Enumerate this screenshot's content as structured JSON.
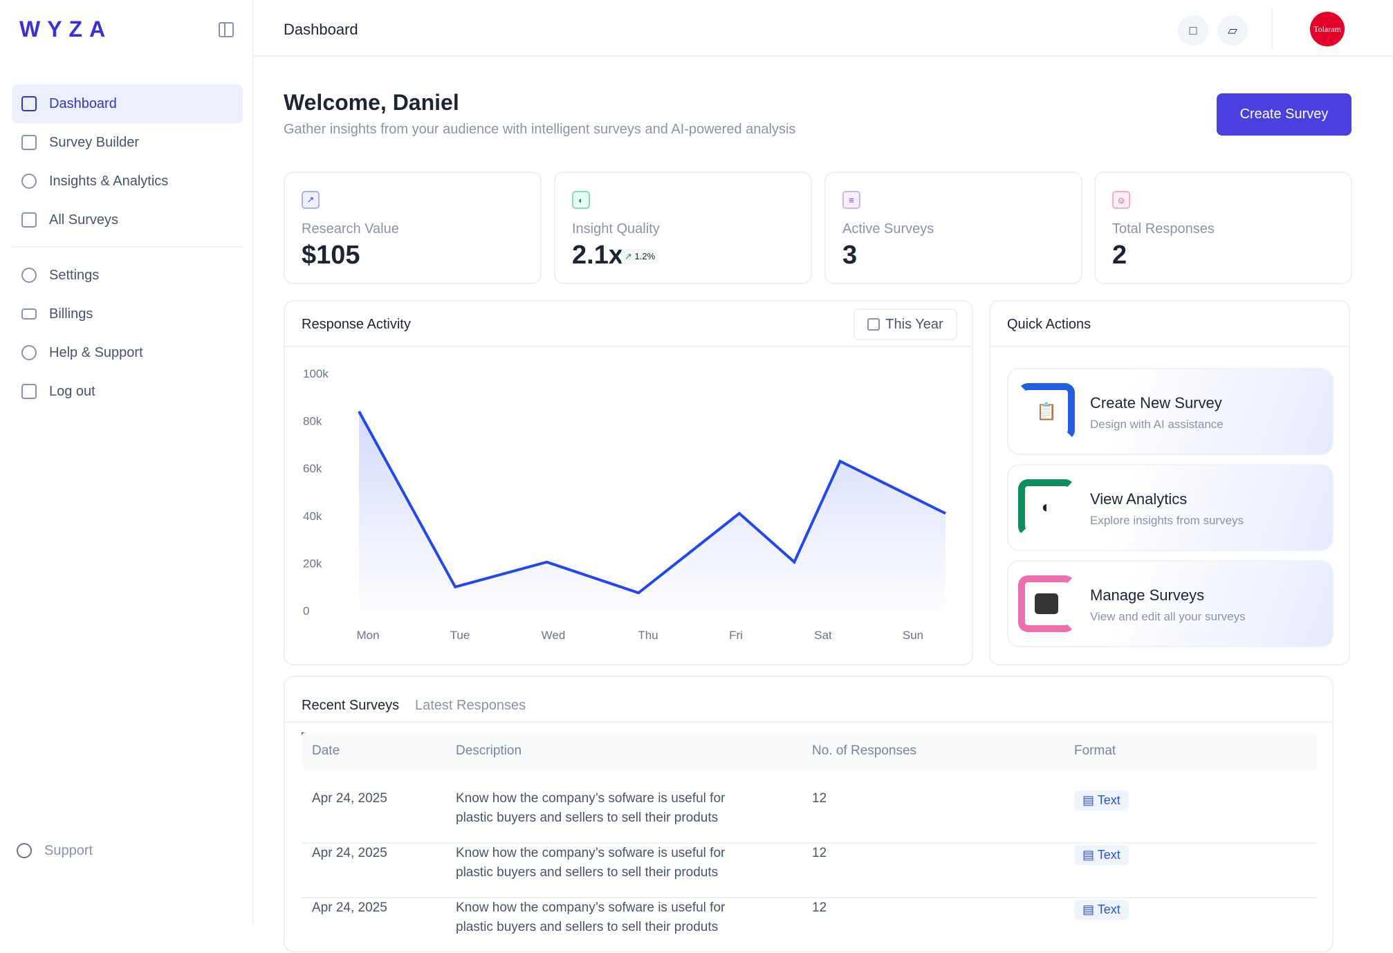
{
  "brand": "WYZA",
  "sidebar": {
    "items": [
      {
        "label": "Dashboard",
        "icon": "dashboard-icon"
      },
      {
        "label": "Survey Builder",
        "icon": "document-icon"
      },
      {
        "label": "Insights & Analytics",
        "icon": "brain-icon"
      },
      {
        "label": "All Surveys",
        "icon": "chart-file-icon"
      }
    ],
    "secondary": [
      {
        "label": "Settings",
        "icon": "gear-icon"
      },
      {
        "label": "Billings",
        "icon": "credit-card-icon"
      },
      {
        "label": "Help & Support",
        "icon": "help-icon"
      },
      {
        "label": "Log out",
        "icon": "logout-icon"
      }
    ],
    "support": "Support"
  },
  "header": {
    "title": "Dashboard",
    "avatar": "Tolaram"
  },
  "welcome": {
    "title": "Welcome, Daniel",
    "subtitle": "Gather insights from your audience with intelligent surveys and AI-powered analysis",
    "cta": "Create Survey"
  },
  "stats": [
    {
      "label": "Research Value",
      "value": "$105",
      "color": "#4f46e5"
    },
    {
      "label": "Insight Quality",
      "value": "2.1x",
      "delta": "1.2%",
      "color": "#059669"
    },
    {
      "label": "Active Surveys",
      "value": "3",
      "color": "#9333ea"
    },
    {
      "label": "Total Responses",
      "value": "2",
      "color": "#db2777"
    }
  ],
  "activity": {
    "title": "Response Activity",
    "range": "This Year"
  },
  "chart_data": {
    "type": "area",
    "title": "Response Activity",
    "categories": [
      "Mon",
      "Tue",
      "Wed",
      "Thu",
      "Fri",
      "Sat",
      "Sun"
    ],
    "x": [
      0,
      1.05,
      2.05,
      3.05,
      4.15,
      4.75,
      5.25,
      6.4
    ],
    "values": [
      84000,
      10000,
      20500,
      7500,
      41000,
      20500,
      63000,
      41000
    ],
    "yticks": [
      "0",
      "20k",
      "40k",
      "60k",
      "80k",
      "100k"
    ],
    "ylim": [
      0,
      100000
    ],
    "color": "#2447f0"
  },
  "quick": {
    "title": "Quick Actions",
    "items": [
      {
        "title": "Create New Survey",
        "subtitle": "Design with AI assistance",
        "color": "#2160e0"
      },
      {
        "title": "View Analytics",
        "subtitle": "Explore insights from surveys",
        "color": "#0b8f5f"
      },
      {
        "title": "Manage Surveys",
        "subtitle": "View and edit all your surveys",
        "color": "#ee6eae"
      }
    ]
  },
  "table": {
    "tabs": [
      "Recent Surveys",
      "Latest Responses"
    ],
    "headers": [
      "Date",
      "Description",
      "No. of Responses",
      "Format"
    ],
    "rows": [
      {
        "date": "Apr 24, 2025",
        "desc1": "Know how the company’s sofware is useful for",
        "desc2": "plastic buyers  and sellers to sell their produts",
        "count": "12",
        "format": "Text"
      },
      {
        "date": "Apr 24, 2025",
        "desc1": "Know how the company’s sofware is useful for",
        "desc2": "plastic buyers  and sellers to sell their produts",
        "count": "12",
        "format": "Text"
      },
      {
        "date": "Apr 24, 2025",
        "desc1": "Know how the company’s sofware is useful for",
        "desc2": "plastic buyers  and sellers to sell their produts",
        "count": "12",
        "format": "Text"
      }
    ]
  }
}
